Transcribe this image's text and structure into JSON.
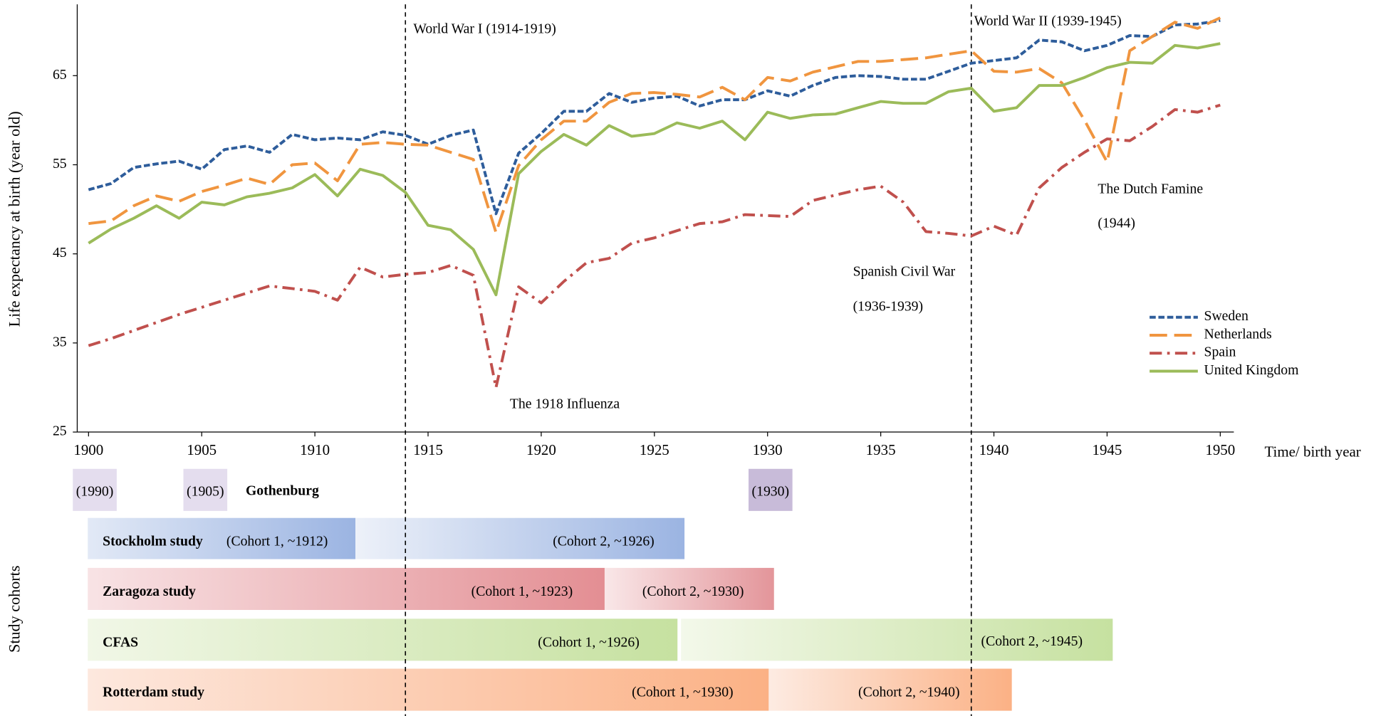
{
  "chart_data": {
    "type": "line",
    "y_label": "Life expectancy at birth (year old)",
    "x_label": "Time/ birth year",
    "x": [
      1900,
      1901,
      1902,
      1903,
      1904,
      1905,
      1906,
      1907,
      1908,
      1909,
      1910,
      1911,
      1912,
      1913,
      1914,
      1915,
      1916,
      1917,
      1918,
      1919,
      1920,
      1921,
      1922,
      1923,
      1924,
      1925,
      1926,
      1927,
      1928,
      1929,
      1930,
      1931,
      1932,
      1933,
      1934,
      1935,
      1936,
      1937,
      1938,
      1939,
      1940,
      1941,
      1942,
      1943,
      1944,
      1945,
      1946,
      1947,
      1948,
      1949,
      1950
    ],
    "xlim": [
      1899.5,
      1950.6
    ],
    "xticks": [
      1900,
      1905,
      1910,
      1915,
      1920,
      1925,
      1930,
      1935,
      1940,
      1945,
      1950
    ],
    "ylim": [
      25,
      73
    ],
    "yticks": [
      25,
      35,
      45,
      55,
      65
    ],
    "legend": "right",
    "series": [
      {
        "name": "Sweden",
        "color": "#2e5d9b",
        "line_style": "dash",
        "values": [
          52.2,
          52.9,
          54.7,
          55.1,
          55.4,
          54.5,
          56.7,
          57.1,
          56.4,
          58.4,
          57.8,
          58.0,
          57.8,
          58.7,
          58.3,
          57.3,
          58.3,
          58.9,
          49.5,
          56.3,
          58.5,
          61.0,
          61.0,
          63.0,
          62.0,
          62.5,
          62.7,
          61.6,
          62.3,
          62.3,
          63.3,
          62.7,
          63.9,
          64.8,
          65.0,
          64.9,
          64.6,
          64.6,
          65.5,
          66.4,
          66.7,
          67.0,
          69.0,
          68.8,
          67.8,
          68.4,
          69.5,
          69.4,
          70.7,
          70.8,
          71.2
        ]
      },
      {
        "name": "Netherlands",
        "color": "#f0953f",
        "line_style": "long-dash",
        "values": [
          48.4,
          48.7,
          50.4,
          51.5,
          50.9,
          52.0,
          52.7,
          53.5,
          52.8,
          55.0,
          55.2,
          53.2,
          57.3,
          57.5,
          57.3,
          57.2,
          56.4,
          55.6,
          47.4,
          54.9,
          57.8,
          59.9,
          59.9,
          62.0,
          63.0,
          63.1,
          62.9,
          62.6,
          63.7,
          62.3,
          64.8,
          64.4,
          65.4,
          66.0,
          66.6,
          66.6,
          66.8,
          67.0,
          67.4,
          67.8,
          65.5,
          65.4,
          65.8,
          64.2,
          60.0,
          55.3,
          67.8,
          69.4,
          71.0,
          70.3,
          71.5
        ]
      },
      {
        "name": "Spain",
        "color": "#c0504d",
        "line_style": "dash-dot",
        "values": [
          34.7,
          35.5,
          36.4,
          37.3,
          38.2,
          39.0,
          39.8,
          40.6,
          41.4,
          41.1,
          40.8,
          39.8,
          43.5,
          42.4,
          42.7,
          42.9,
          43.7,
          42.6,
          30.0,
          41.3,
          39.5,
          41.9,
          44.0,
          44.5,
          46.2,
          46.8,
          47.6,
          48.4,
          48.6,
          49.4,
          49.3,
          49.2,
          51.0,
          51.6,
          52.2,
          52.6,
          50.8,
          47.5,
          47.3,
          47.0,
          48.1,
          47.1,
          52.4,
          54.7,
          56.4,
          57.9,
          57.7,
          59.3,
          61.2,
          60.9,
          61.7
        ]
      },
      {
        "name": "United Kingdom",
        "color": "#9bbb59",
        "line_style": "solid",
        "values": [
          46.2,
          47.8,
          49.0,
          50.4,
          49.0,
          50.8,
          50.5,
          51.4,
          51.8,
          52.4,
          53.9,
          51.5,
          54.5,
          53.8,
          51.9,
          48.2,
          47.7,
          45.5,
          40.4,
          54.0,
          56.5,
          58.4,
          57.2,
          59.4,
          58.2,
          58.5,
          59.7,
          59.1,
          59.9,
          57.8,
          60.9,
          60.2,
          60.6,
          60.7,
          61.4,
          62.1,
          61.9,
          61.9,
          63.2,
          63.6,
          61.0,
          61.4,
          63.9,
          63.9,
          64.8,
          65.9,
          66.5,
          66.4,
          68.4,
          68.1,
          68.6
        ]
      }
    ],
    "reference_lines": [
      1914,
      1939
    ],
    "annotations": [
      {
        "text": "World War I (1914-1919)",
        "color": "#000000"
      },
      {
        "text": "World War II (1939-1945)",
        "color": "#000000"
      },
      {
        "text": "The 1918 Influenza",
        "color": "#000000"
      },
      {
        "text": "Spanish Civil War",
        "color": "#c00000"
      },
      {
        "text": "(1936-1939)",
        "color": "#c00000"
      },
      {
        "text": "The Dutch Famine",
        "color": "#e46c0a"
      },
      {
        "text": "(1944)",
        "color": "#e46c0a"
      }
    ]
  },
  "cohort_section": {
    "axis_label": "Study cohorts",
    "year_labels": [
      "(1990)",
      "(1905)",
      "(1930)"
    ],
    "gothenburg": "Gothenburg",
    "studies": [
      {
        "name": "Stockholm study",
        "cohort_1": "(Cohort 1, ~1912)",
        "cohort_2": "(Cohort  2,  ~1926)"
      },
      {
        "name": "Zaragoza study",
        "cohort_1": "(Cohort 1, ~1923)",
        "cohort_2": "(Cohort  2,  ~1930)"
      },
      {
        "name": "CFAS",
        "cohort_1": "(Cohort 1, ~1926)",
        "cohort_2": "(Cohort  2,  ~1945)"
      },
      {
        "name": "Rotterdam study",
        "cohort_1": "(Cohort 1, ~1930)",
        "cohort_2": "(Cohort 2, ~1940)"
      }
    ]
  }
}
